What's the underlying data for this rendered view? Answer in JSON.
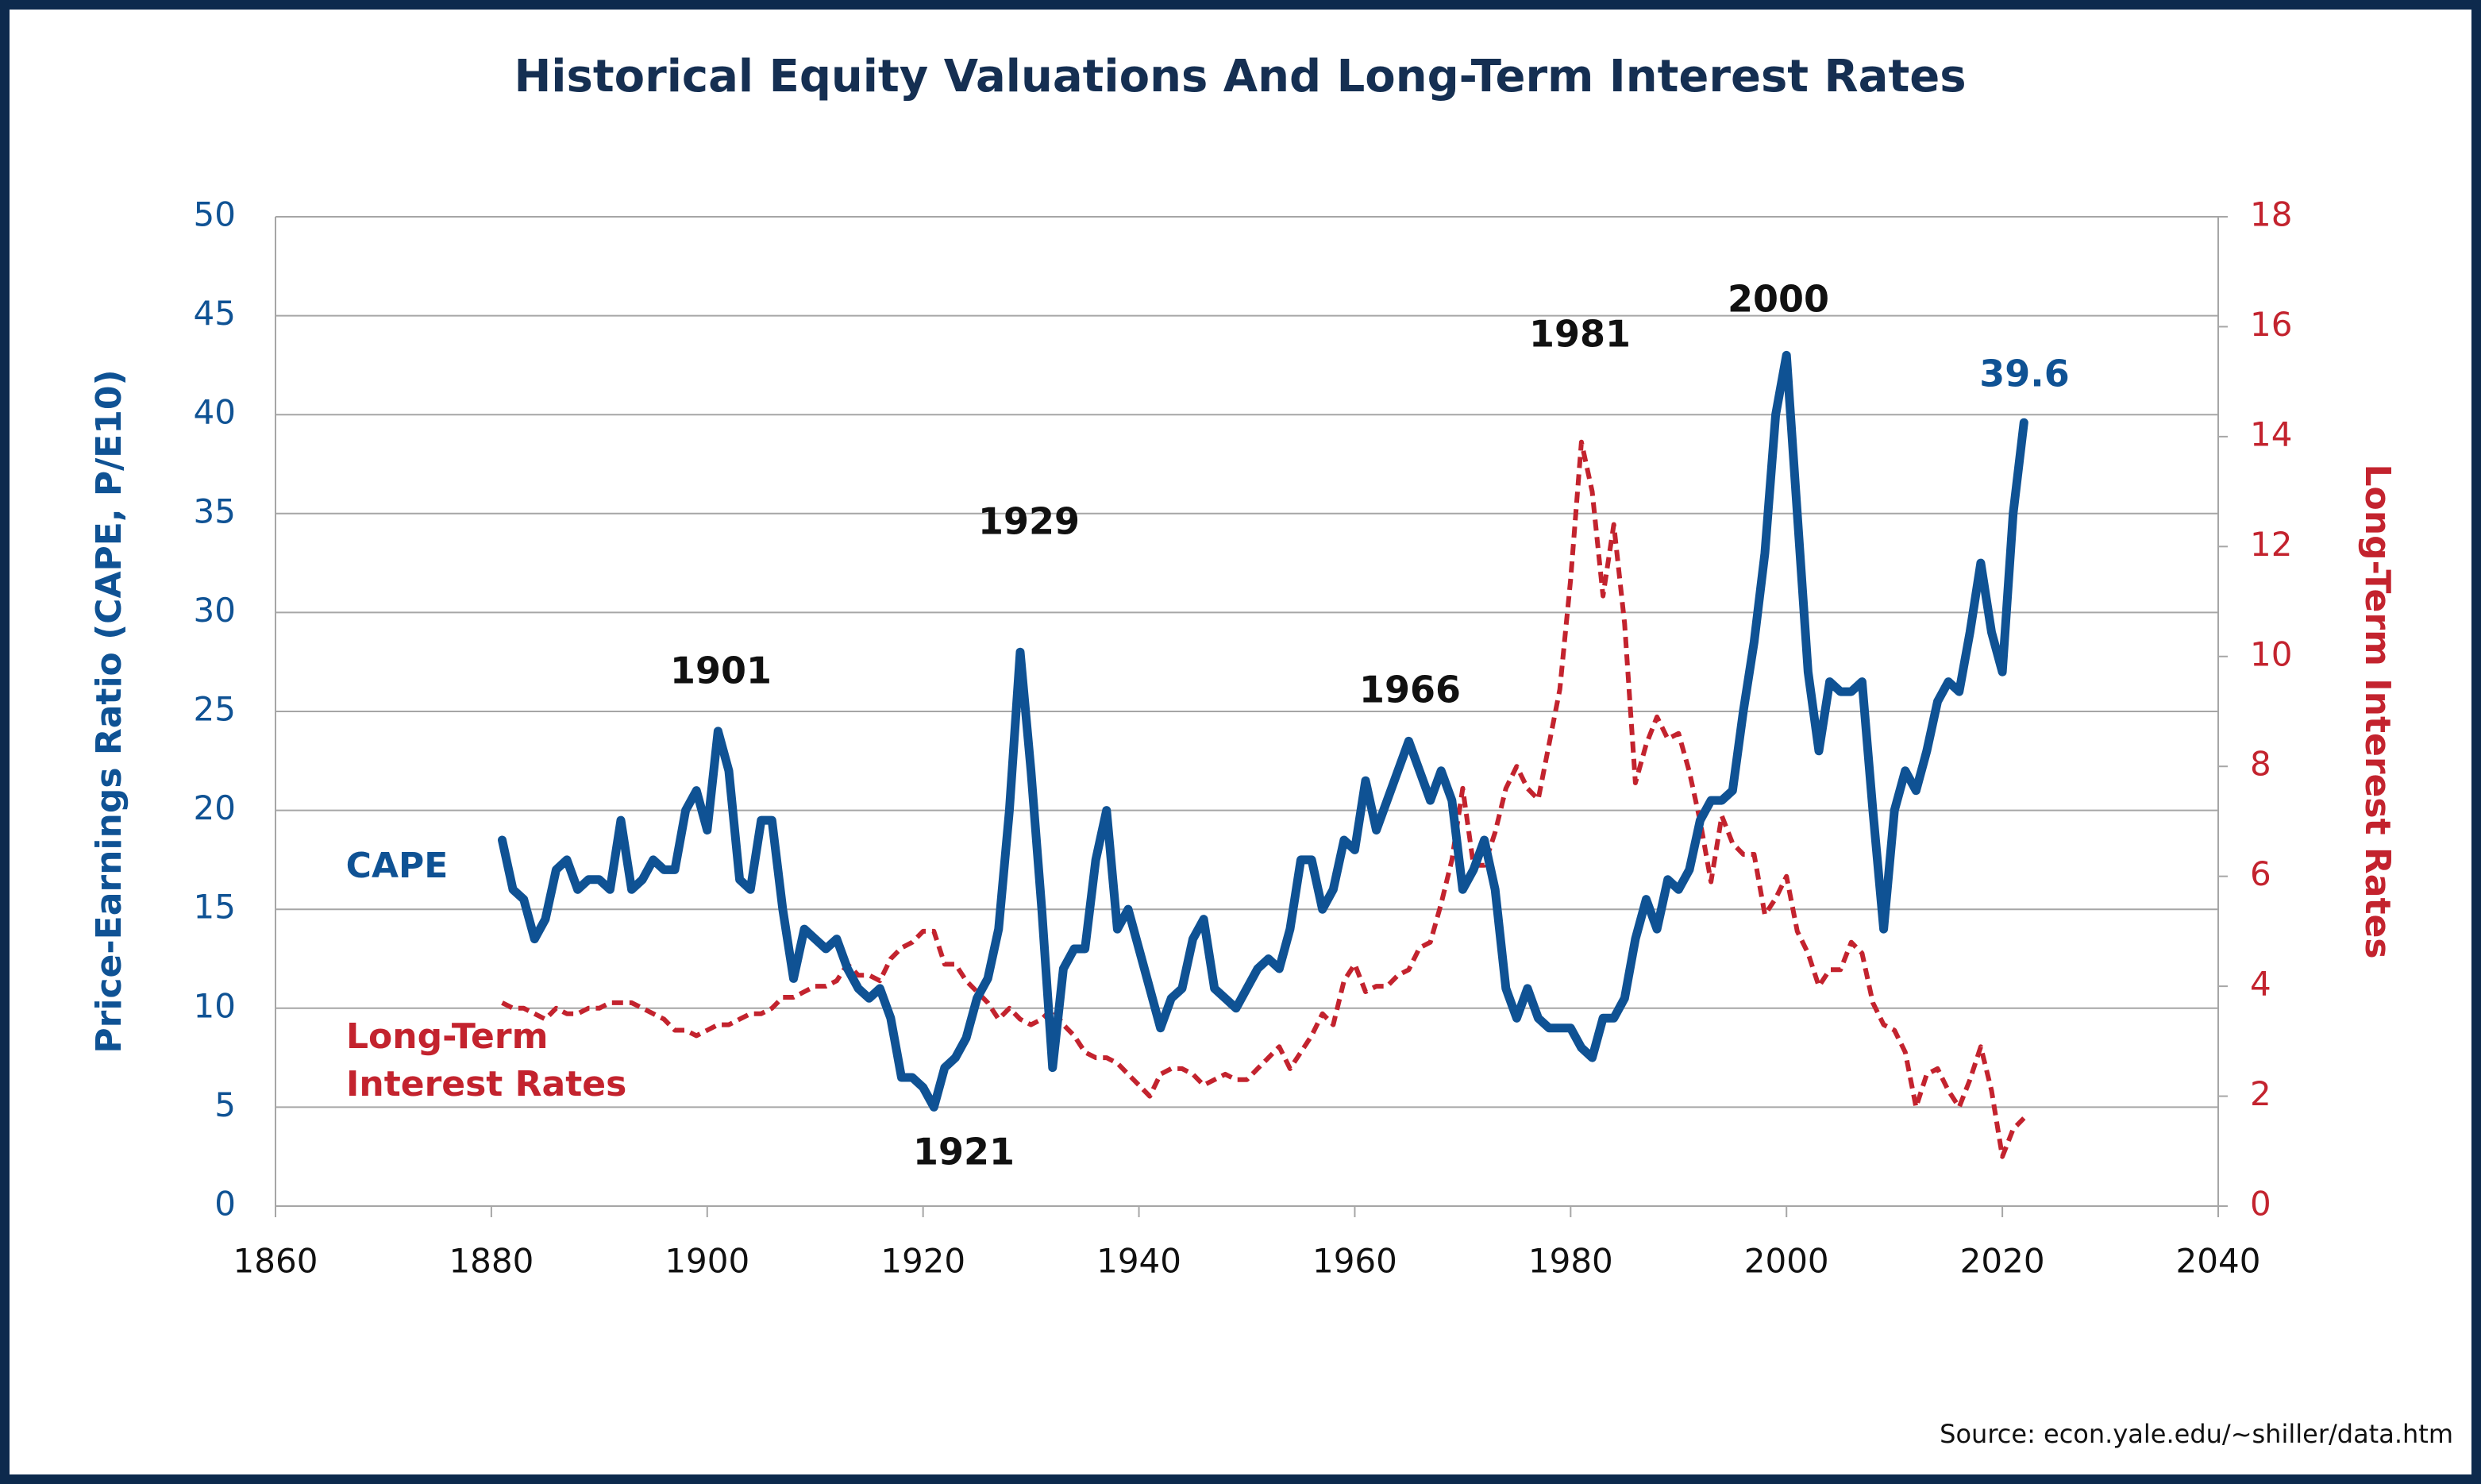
{
  "chart_data": {
    "type": "line",
    "title": "Historical Equity Valuations And Long-Term Interest Rates",
    "y_label": "Price-Earnings Ratio (CAPE, P/E10)",
    "y2_label": "Long-Term Interest Rates",
    "source": "Source: econ.yale.edu/~shiller/data.htm",
    "annotations": [
      "1901",
      "1929",
      "1921",
      "1966",
      "1981",
      "2000",
      "39.6"
    ],
    "xlim": [
      1860,
      2040
    ],
    "xticks": [
      1860,
      1880,
      1900,
      1920,
      1940,
      1960,
      1980,
      2000,
      2020,
      2040
    ],
    "ylim": [
      0,
      50
    ],
    "yticks": [
      0,
      5,
      10,
      15,
      20,
      25,
      30,
      35,
      40,
      45,
      50
    ],
    "y2lim": [
      0,
      18
    ],
    "y2ticks": [
      0,
      2,
      4,
      6,
      8,
      10,
      12,
      14,
      16,
      18
    ],
    "grid": true,
    "x": [
      1881,
      1882,
      1883,
      1884,
      1885,
      1886,
      1887,
      1888,
      1889,
      1890,
      1891,
      1892,
      1893,
      1894,
      1895,
      1896,
      1897,
      1898,
      1899,
      1900,
      1901,
      1902,
      1903,
      1904,
      1905,
      1906,
      1907,
      1908,
      1909,
      1910,
      1911,
      1912,
      1913,
      1914,
      1915,
      1916,
      1917,
      1918,
      1919,
      1920,
      1921,
      1922,
      1923,
      1924,
      1925,
      1926,
      1927,
      1928,
      1929,
      1930,
      1931,
      1932,
      1933,
      1934,
      1935,
      1936,
      1937,
      1938,
      1939,
      1940,
      1941,
      1942,
      1943,
      1944,
      1945,
      1946,
      1947,
      1948,
      1949,
      1950,
      1951,
      1952,
      1953,
      1954,
      1955,
      1956,
      1957,
      1958,
      1959,
      1960,
      1961,
      1962,
      1963,
      1964,
      1965,
      1966,
      1967,
      1968,
      1969,
      1970,
      1971,
      1972,
      1973,
      1974,
      1975,
      1976,
      1977,
      1978,
      1979,
      1980,
      1981,
      1982,
      1983,
      1984,
      1985,
      1986,
      1987,
      1988,
      1989,
      1990,
      1991,
      1992,
      1993,
      1994,
      1995,
      1996,
      1997,
      1998,
      1999,
      2000,
      2001,
      2002,
      2003,
      2004,
      2005,
      2006,
      2007,
      2008,
      2009,
      2010,
      2011,
      2012,
      2013,
      2014,
      2015,
      2016,
      2017,
      2018,
      2019,
      2020,
      2021,
      2022
    ],
    "series": [
      {
        "name": "CAPE",
        "color": "#0f5294",
        "axis": "y",
        "values": [
          18.5,
          16,
          15.5,
          13.5,
          14.5,
          17,
          17.5,
          16,
          16.5,
          16.5,
          16,
          19.5,
          16,
          16.5,
          17.5,
          17,
          17,
          20,
          21,
          19,
          24,
          22,
          16.5,
          16,
          19.5,
          19.5,
          15,
          11.5,
          14,
          13.5,
          13,
          13.5,
          12,
          11,
          10.5,
          11,
          9.5,
          6.5,
          6.5,
          6,
          5,
          7,
          7.5,
          8.5,
          10.5,
          11.5,
          14,
          20,
          28,
          22,
          15,
          7,
          12,
          13,
          13,
          17.5,
          20,
          14,
          15,
          13,
          11,
          9,
          10.5,
          11,
          13.5,
          14.5,
          11,
          10.5,
          10,
          11,
          12,
          12.5,
          12,
          14,
          17.5,
          17.5,
          15,
          16,
          18.5,
          18,
          21.5,
          19,
          20.5,
          22,
          23.5,
          22,
          20.5,
          22,
          20.5,
          16,
          17,
          18.5,
          16,
          11,
          9.5,
          11,
          9.5,
          9,
          9,
          9,
          8,
          7.5,
          9.5,
          9.5,
          10.5,
          13.5,
          15.5,
          14,
          16.5,
          16,
          17,
          19.5,
          20.5,
          20.5,
          21,
          25,
          28.5,
          33,
          40,
          43,
          35,
          27,
          23,
          26.5,
          26,
          26,
          26.5,
          20,
          14,
          20,
          22,
          21,
          23,
          25.5,
          26.5,
          26,
          29,
          32.5,
          29,
          27,
          35,
          39.6
        ]
      },
      {
        "name": "Long-Term Interest Rates",
        "color": "#c3232e",
        "axis": "y2",
        "values": [
          3.7,
          3.6,
          3.6,
          3.5,
          3.4,
          3.6,
          3.5,
          3.5,
          3.6,
          3.6,
          3.7,
          3.7,
          3.7,
          3.6,
          3.5,
          3.4,
          3.2,
          3.2,
          3.1,
          3.2,
          3.3,
          3.3,
          3.4,
          3.5,
          3.5,
          3.6,
          3.8,
          3.8,
          3.9,
          4.0,
          4.0,
          4.1,
          4.4,
          4.2,
          4.2,
          4.1,
          4.5,
          4.7,
          4.8,
          5.0,
          5.0,
          4.4,
          4.4,
          4.1,
          3.9,
          3.7,
          3.4,
          3.6,
          3.4,
          3.3,
          3.4,
          3.6,
          3.3,
          3.1,
          2.8,
          2.7,
          2.7,
          2.6,
          2.4,
          2.2,
          2.0,
          2.4,
          2.5,
          2.5,
          2.4,
          2.2,
          2.3,
          2.4,
          2.3,
          2.3,
          2.5,
          2.7,
          2.9,
          2.5,
          2.8,
          3.1,
          3.5,
          3.3,
          4.1,
          4.4,
          3.9,
          4.0,
          4.0,
          4.2,
          4.3,
          4.7,
          4.8,
          5.5,
          6.3,
          7.6,
          6.2,
          6.2,
          6.8,
          7.6,
          8.0,
          7.6,
          7.4,
          8.4,
          9.4,
          11.4,
          13.9,
          13.0,
          11.1,
          12.4,
          10.6,
          7.7,
          8.4,
          8.9,
          8.5,
          8.6,
          7.9,
          7.0,
          5.9,
          7.1,
          6.6,
          6.4,
          6.4,
          5.3,
          5.6,
          6.0,
          5.0,
          4.6,
          4.0,
          4.3,
          4.3,
          4.8,
          4.6,
          3.7,
          3.3,
          3.2,
          2.8,
          1.8,
          2.4,
          2.5,
          2.1,
          1.8,
          2.3,
          2.9,
          2.1,
          0.9,
          1.4,
          1.6
        ]
      }
    ]
  }
}
